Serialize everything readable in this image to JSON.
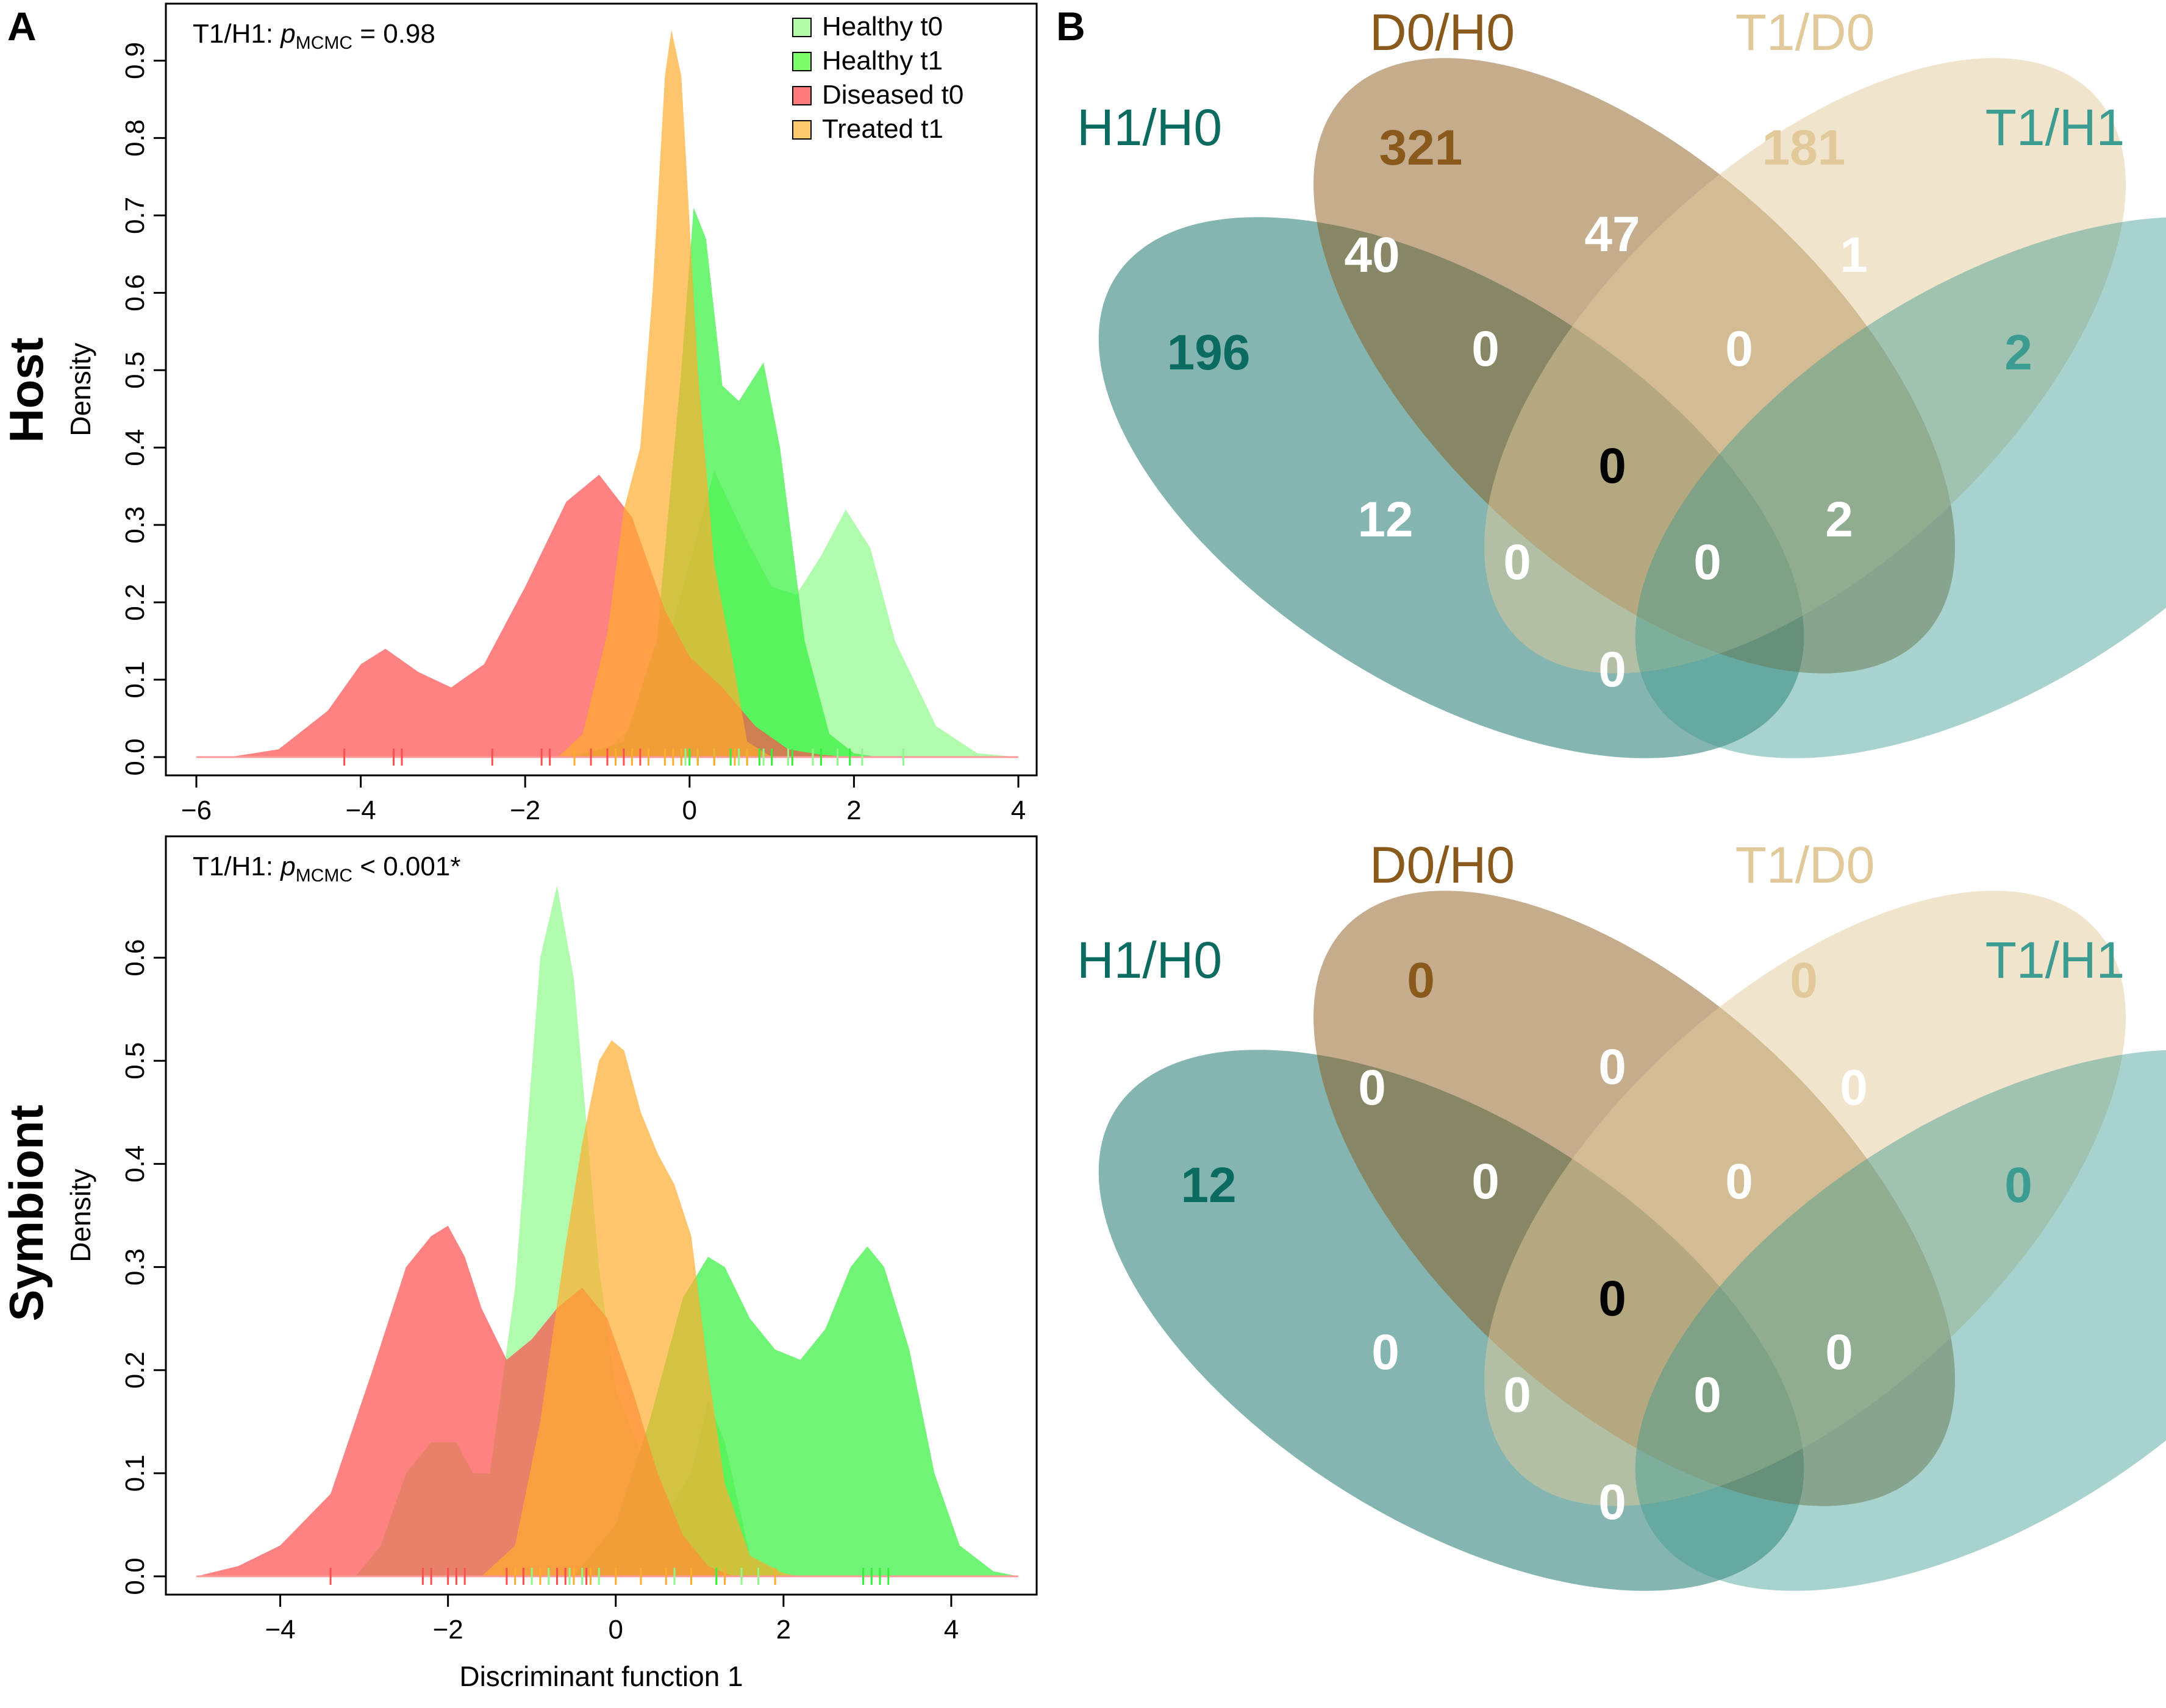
{
  "panel_labels": {
    "a": "A",
    "b": "B"
  },
  "row_labels": {
    "host": "Host",
    "symbiont": "Symbiont"
  },
  "colors": {
    "healthy_t0": "#8ef98a",
    "healthy_t1": "#33f03a",
    "diseased_t0": "#ff4d4d",
    "treated_t1": "#ffac2e",
    "h1h0": "#0b6b61",
    "d0h0": "#8a5a1c",
    "t1d0": "#e2c99a",
    "t1h1": "#3d9c91"
  },
  "legend": [
    {
      "label": "Healthy t0",
      "color": "#b1fba6"
    },
    {
      "label": "Healthy t1",
      "color": "#7efc6a"
    },
    {
      "label": "Diseased t0",
      "color": "#ff7a7a"
    },
    {
      "label": "Treated t1",
      "color": "#ffca6a"
    }
  ],
  "chart_data": [
    {
      "type": "area",
      "panel": "Host",
      "annotation": {
        "prefix": "T1/H1: ",
        "p": "p",
        "sub": "MCMC",
        "suffix": " = 0.98"
      },
      "ylabel": "Density",
      "xlabel": "",
      "xlim": [
        -6,
        4
      ],
      "ylim": [
        0,
        0.95
      ],
      "xticks": [
        -6,
        -4,
        -2,
        0,
        2,
        4
      ],
      "yticks": [
        0.0,
        0.1,
        0.2,
        0.3,
        0.4,
        0.5,
        0.6,
        0.7,
        0.8,
        0.9
      ],
      "series": [
        {
          "key": "healthy_t0",
          "color": "#8ef98a",
          "x": [
            -1.6,
            -1.0,
            -0.5,
            0.0,
            0.3,
            0.7,
            1.0,
            1.3,
            1.6,
            1.9,
            2.2,
            2.5,
            3.0,
            3.5,
            4.0
          ],
          "y": [
            0.0,
            0.01,
            0.06,
            0.25,
            0.37,
            0.28,
            0.22,
            0.21,
            0.26,
            0.32,
            0.27,
            0.15,
            0.04,
            0.005,
            0.0
          ],
          "rug": [
            -0.05,
            0.1,
            0.3,
            0.6,
            0.9,
            1.2,
            1.5,
            1.8,
            2.1,
            2.6
          ]
        },
        {
          "key": "healthy_t1",
          "color": "#33f03a",
          "x": [
            -1.4,
            -0.8,
            -0.4,
            -0.1,
            0.05,
            0.2,
            0.4,
            0.6,
            0.9,
            1.1,
            1.4,
            1.7,
            2.0,
            2.3
          ],
          "y": [
            0.0,
            0.02,
            0.15,
            0.5,
            0.71,
            0.67,
            0.48,
            0.46,
            0.51,
            0.4,
            0.15,
            0.03,
            0.005,
            0.0
          ],
          "rug": [
            -0.1,
            0.0,
            0.1,
            0.3,
            0.5,
            0.7,
            0.85,
            1.0,
            1.25,
            1.6,
            1.95
          ]
        },
        {
          "key": "diseased_t0",
          "color": "#ff4d4d",
          "x": [
            -5.6,
            -5.0,
            -4.4,
            -4.0,
            -3.7,
            -3.3,
            -2.9,
            -2.5,
            -2.0,
            -1.5,
            -1.1,
            -0.7,
            -0.3,
            0.0,
            0.4,
            0.8,
            1.2,
            1.6,
            2.0,
            2.2
          ],
          "y": [
            0.0,
            0.01,
            0.06,
            0.12,
            0.14,
            0.11,
            0.09,
            0.12,
            0.22,
            0.33,
            0.365,
            0.31,
            0.19,
            0.13,
            0.09,
            0.04,
            0.01,
            0.003,
            0.0,
            0.0
          ],
          "rug": [
            -4.2,
            -3.6,
            -3.5,
            -2.4,
            -1.8,
            -1.7,
            -1.2,
            -1.0,
            -0.8,
            -0.6
          ]
        },
        {
          "key": "treated_t1",
          "color": "#ffac2e",
          "x": [
            -1.6,
            -1.3,
            -1.0,
            -0.8,
            -0.6,
            -0.45,
            -0.3,
            -0.22,
            -0.1,
            0.1,
            0.3,
            0.5,
            0.7,
            1.0
          ],
          "y": [
            0.0,
            0.03,
            0.16,
            0.32,
            0.4,
            0.6,
            0.88,
            0.94,
            0.88,
            0.5,
            0.25,
            0.14,
            0.02,
            0.0
          ],
          "rug": [
            -1.4,
            -0.9,
            -0.7,
            -0.5,
            -0.3,
            -0.2,
            -0.1,
            0.1,
            0.3,
            0.55,
            0.7
          ]
        }
      ]
    },
    {
      "type": "area",
      "panel": "Symbiont",
      "annotation": {
        "prefix": "T1/H1: ",
        "p": "p",
        "sub": "MCMC",
        "suffix": " < 0.001*"
      },
      "ylabel": "Density",
      "xlabel": "Discriminant function 1",
      "xlim": [
        -5,
        4.8
      ],
      "ylim": [
        0,
        0.7
      ],
      "xticks": [
        -4,
        -2,
        0,
        2,
        4
      ],
      "yticks": [
        0.0,
        0.1,
        0.2,
        0.3,
        0.4,
        0.5,
        0.6
      ],
      "series": [
        {
          "key": "healthy_t0",
          "color": "#8ef98a",
          "x": [
            -3.1,
            -2.8,
            -2.5,
            -2.2,
            -1.9,
            -1.7,
            -1.5,
            -1.2,
            -0.9,
            -0.7,
            -0.5,
            -0.2,
            0.0,
            0.3,
            0.6,
            0.9,
            1.1,
            1.3,
            1.6,
            2.0
          ],
          "y": [
            0.0,
            0.03,
            0.1,
            0.13,
            0.13,
            0.1,
            0.1,
            0.28,
            0.6,
            0.67,
            0.58,
            0.3,
            0.18,
            0.12,
            0.06,
            0.1,
            0.17,
            0.13,
            0.02,
            0.0
          ],
          "rug": [
            -1.0,
            -0.8,
            -0.55,
            -0.4,
            -0.2,
            0.3,
            0.7,
            1.2,
            1.5,
            1.7
          ]
        },
        {
          "key": "healthy_t1",
          "color": "#33f03a",
          "x": [
            -0.5,
            0.0,
            0.4,
            0.8,
            1.1,
            1.3,
            1.6,
            1.9,
            2.2,
            2.5,
            2.8,
            3.0,
            3.2,
            3.5,
            3.8,
            4.1,
            4.5,
            4.8
          ],
          "y": [
            0.0,
            0.05,
            0.15,
            0.27,
            0.31,
            0.3,
            0.25,
            0.22,
            0.21,
            0.24,
            0.3,
            0.32,
            0.3,
            0.22,
            0.1,
            0.03,
            0.005,
            0.0
          ],
          "rug": [
            0.9,
            1.2,
            2.95,
            3.05,
            3.15,
            3.25
          ]
        },
        {
          "key": "diseased_t0",
          "color": "#ff4d4d",
          "x": [
            -5.0,
            -4.5,
            -4.0,
            -3.4,
            -2.9,
            -2.5,
            -2.2,
            -2.0,
            -1.8,
            -1.6,
            -1.3,
            -1.0,
            -0.7,
            -0.4,
            -0.1,
            0.2,
            0.5,
            0.8,
            1.1,
            1.4
          ],
          "y": [
            0.0,
            0.01,
            0.03,
            0.08,
            0.2,
            0.3,
            0.33,
            0.34,
            0.31,
            0.26,
            0.21,
            0.23,
            0.26,
            0.28,
            0.25,
            0.18,
            0.1,
            0.04,
            0.01,
            0.0
          ],
          "rug": [
            -3.4,
            -2.3,
            -2.2,
            -2.0,
            -1.9,
            -1.8,
            -1.3,
            -1.1,
            -0.7,
            -0.6,
            -0.35
          ]
        },
        {
          "key": "treated_t1",
          "color": "#ffac2e",
          "x": [
            -1.6,
            -1.2,
            -0.9,
            -0.6,
            -0.4,
            -0.2,
            -0.05,
            0.1,
            0.3,
            0.5,
            0.7,
            0.9,
            1.1,
            1.3,
            1.6,
            2.0,
            2.2
          ],
          "y": [
            0.0,
            0.03,
            0.15,
            0.32,
            0.42,
            0.5,
            0.52,
            0.51,
            0.45,
            0.41,
            0.38,
            0.33,
            0.2,
            0.09,
            0.02,
            0.003,
            0.0
          ],
          "rug": [
            -1.2,
            -0.9,
            -0.5,
            -0.3,
            0.0,
            0.3,
            0.6,
            0.9,
            1.3,
            1.9
          ]
        }
      ]
    },
    {
      "type": "venn",
      "panel": "Host",
      "sets": [
        "H1/H0",
        "D0/H0",
        "T1/D0",
        "T1/H1"
      ],
      "counts": {
        "H1H0_only": 196,
        "D0H0_only": 321,
        "T1D0_only": 181,
        "T1H1_only": 2,
        "H1H0_D0H0": 40,
        "D0H0_T1D0": 47,
        "T1D0_T1H1": 1,
        "H1H0_D0H0_T1D0": 0,
        "D0H0_T1D0_T1H1": 0,
        "H1H0_T1D0": 12,
        "D0H0_T1H1": 2,
        "all": 0,
        "H1H0_T1D0_T1H1": 0,
        "H1H0_D0H0_T1H1": 0,
        "H1H0_T1H1": 0
      }
    },
    {
      "type": "venn",
      "panel": "Symbiont",
      "sets": [
        "H1/H0",
        "D0/H0",
        "T1/D0",
        "T1/H1"
      ],
      "counts": {
        "H1H0_only": 12,
        "D0H0_only": 0,
        "T1D0_only": 0,
        "T1H1_only": 0,
        "H1H0_D0H0": 0,
        "D0H0_T1D0": 0,
        "T1D0_T1H1": 0,
        "H1H0_D0H0_T1D0": 0,
        "D0H0_T1D0_T1H1": 0,
        "H1H0_T1D0": 0,
        "D0H0_T1H1": 0,
        "all": 0,
        "H1H0_T1D0_T1H1": 0,
        "H1H0_D0H0_T1H1": 0,
        "H1H0_T1H1": 0
      }
    }
  ]
}
